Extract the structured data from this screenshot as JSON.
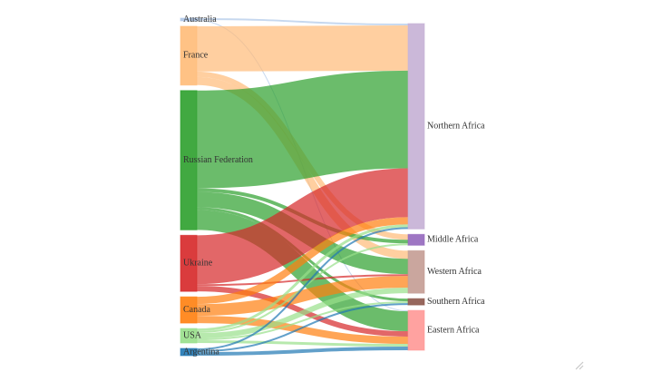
{
  "sources": [
    {
      "id": "australia",
      "label": "Australia",
      "color": "#aec7e8"
    },
    {
      "id": "france",
      "label": "France",
      "color": "#ffbb78"
    },
    {
      "id": "russian-federation",
      "label": "Russian Federation",
      "color": "#2ca02c"
    },
    {
      "id": "ukraine",
      "label": "Ukraine",
      "color": "#d62728"
    },
    {
      "id": "canada",
      "label": "Canada",
      "color": "#ff7f0e"
    },
    {
      "id": "usa",
      "label": "USA",
      "color": "#98df8a"
    },
    {
      "id": "argentina",
      "label": "Argentina",
      "color": "#1f77b4"
    }
  ],
  "targets": [
    {
      "id": "northern-africa",
      "label": "Northern Africa",
      "color": "#c5b0d5"
    },
    {
      "id": "middle-africa",
      "label": "Middle Africa",
      "color": "#9467bd"
    },
    {
      "id": "western-africa",
      "label": "Western Africa",
      "color": "#c49c94"
    },
    {
      "id": "southern-africa",
      "label": "Southern Africa",
      "color": "#8c564b"
    },
    {
      "id": "eastern-africa",
      "label": "Eastern Africa",
      "color": "#ff9896"
    }
  ],
  "flows": [
    {
      "source": "australia",
      "target": "northern-africa",
      "value": 2
    },
    {
      "source": "australia",
      "target": "eastern-africa",
      "value": 1
    },
    {
      "source": "france",
      "target": "northern-africa",
      "value": 50
    },
    {
      "source": "france",
      "target": "middle-africa",
      "value": 6
    },
    {
      "source": "france",
      "target": "western-africa",
      "value": 9
    },
    {
      "source": "russian-federation",
      "target": "northern-africa",
      "value": 108
    },
    {
      "source": "russian-federation",
      "target": "middle-africa",
      "value": 4
    },
    {
      "source": "russian-federation",
      "target": "western-africa",
      "value": 17
    },
    {
      "source": "russian-federation",
      "target": "southern-africa",
      "value": 3
    },
    {
      "source": "russian-federation",
      "target": "eastern-africa",
      "value": 22
    },
    {
      "source": "ukraine",
      "target": "northern-africa",
      "value": 54
    },
    {
      "source": "ukraine",
      "target": "western-africa",
      "value": 2
    },
    {
      "source": "ukraine",
      "target": "eastern-africa",
      "value": 6
    },
    {
      "source": "canada",
      "target": "northern-africa",
      "value": 8
    },
    {
      "source": "canada",
      "target": "western-africa",
      "value": 13
    },
    {
      "source": "canada",
      "target": "eastern-africa",
      "value": 8
    },
    {
      "source": "usa",
      "target": "northern-africa",
      "value": 3
    },
    {
      "source": "usa",
      "target": "middle-africa",
      "value": 2
    },
    {
      "source": "usa",
      "target": "western-africa",
      "value": 6
    },
    {
      "source": "usa",
      "target": "southern-africa",
      "value": 2
    },
    {
      "source": "usa",
      "target": "eastern-africa",
      "value": 3
    },
    {
      "source": "argentina",
      "target": "northern-africa",
      "value": 2
    },
    {
      "source": "argentina",
      "target": "southern-africa",
      "value": 2
    },
    {
      "source": "argentina",
      "target": "eastern-africa",
      "value": 4
    }
  ]
}
